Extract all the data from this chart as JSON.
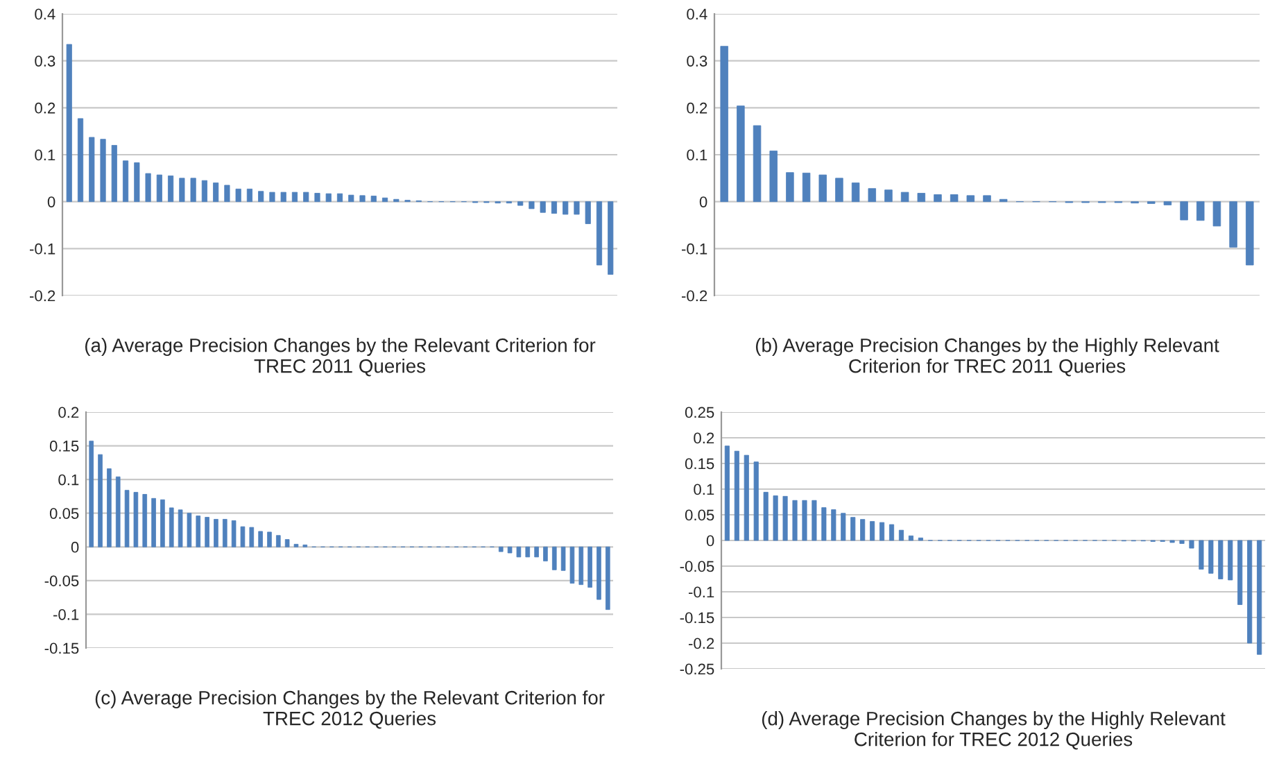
{
  "chart_data": [
    {
      "type": "bar",
      "xlabel": "(a) Average Precision Changes by the Relevant Criterion for\nTREC 2011 Queries",
      "categories": [
        null,
        null,
        null,
        null,
        null,
        null,
        null,
        null,
        null,
        null,
        null,
        null,
        null,
        null,
        null,
        null,
        null,
        null,
        null,
        null,
        null,
        null,
        null,
        null,
        null,
        null,
        null,
        null,
        null,
        null,
        null,
        null,
        null,
        null,
        null,
        null,
        null,
        null,
        null,
        null,
        null,
        null,
        null,
        null,
        null,
        null,
        null,
        null,
        null
      ],
      "values": [
        0.335,
        0.177,
        0.137,
        0.133,
        0.12,
        0.087,
        0.083,
        0.06,
        0.057,
        0.055,
        0.05,
        0.05,
        0.045,
        0.04,
        0.035,
        0.027,
        0.027,
        0.022,
        0.02,
        0.02,
        0.02,
        0.02,
        0.018,
        0.017,
        0.017,
        0.014,
        0.013,
        0.012,
        0.008,
        0.005,
        0.003,
        0.002,
        0,
        0,
        0,
        0,
        -0.002,
        -0.002,
        -0.003,
        -0.003,
        -0.008,
        -0.015,
        -0.023,
        -0.025,
        -0.027,
        -0.027,
        -0.047,
        -0.135,
        -0.155
      ],
      "color": "#4f81bd",
      "ylim": [
        -0.2,
        0.4
      ],
      "yticks": [
        -0.2,
        -0.1,
        0,
        0.1,
        0.2,
        0.3,
        0.4
      ],
      "grid": "y",
      "tick_labels": "y"
    },
    {
      "type": "bar",
      "xlabel": "(b) Average Precision Changes by the Highly Relevant\nCriterion for TREC 2011 Queries",
      "categories": [
        null,
        null,
        null,
        null,
        null,
        null,
        null,
        null,
        null,
        null,
        null,
        null,
        null,
        null,
        null,
        null,
        null,
        null,
        null,
        null,
        null,
        null,
        null,
        null,
        null,
        null,
        null,
        null,
        null,
        null,
        null,
        null,
        null
      ],
      "values": [
        0.331,
        0.204,
        0.162,
        0.108,
        0.062,
        0.061,
        0.057,
        0.05,
        0.04,
        0.028,
        0.025,
        0.02,
        0.018,
        0.015,
        0.015,
        0.013,
        0.013,
        0.005,
        0,
        0,
        0,
        -0.002,
        -0.002,
        -0.002,
        -0.002,
        -0.003,
        -0.004,
        -0.007,
        -0.039,
        -0.04,
        -0.052,
        -0.097,
        -0.135
      ],
      "color": "#4f81bd",
      "ylim": [
        -0.2,
        0.4
      ],
      "yticks": [
        -0.2,
        -0.1,
        0,
        0.1,
        0.2,
        0.3,
        0.4
      ],
      "grid": "y",
      "tick_labels": "y"
    },
    {
      "type": "bar",
      "xlabel": "(c) Average Precision Changes by the Relevant Criterion for\nTREC 2012 Queries",
      "categories": [
        null,
        null,
        null,
        null,
        null,
        null,
        null,
        null,
        null,
        null,
        null,
        null,
        null,
        null,
        null,
        null,
        null,
        null,
        null,
        null,
        null,
        null,
        null,
        null,
        null,
        null,
        null,
        null,
        null,
        null,
        null,
        null,
        null,
        null,
        null,
        null,
        null,
        null,
        null,
        null,
        null,
        null,
        null,
        null,
        null,
        null,
        null,
        null,
        null,
        null,
        null,
        null,
        null,
        null,
        null,
        null,
        null,
        null,
        null
      ],
      "values": [
        0.157,
        0.137,
        0.116,
        0.104,
        0.084,
        0.081,
        0.078,
        0.072,
        0.07,
        0.058,
        0.055,
        0.05,
        0.046,
        0.044,
        0.041,
        0.041,
        0.039,
        0.03,
        0.029,
        0.023,
        0.022,
        0.017,
        0.011,
        0.004,
        0.003,
        0,
        0,
        0,
        0,
        0,
        0,
        0,
        0,
        0,
        0,
        0,
        0,
        0,
        0,
        0,
        0,
        0,
        0,
        0,
        0,
        0,
        -0.007,
        -0.009,
        -0.015,
        -0.015,
        -0.015,
        -0.021,
        -0.034,
        -0.035,
        -0.054,
        -0.056,
        -0.06,
        -0.078,
        -0.093
      ],
      "color": "#4f81bd",
      "ylim": [
        -0.15,
        0.2
      ],
      "yticks": [
        -0.15,
        -0.1,
        -0.05,
        0,
        0.05,
        0.1,
        0.15,
        0.2
      ],
      "grid": "y",
      "tick_labels": "y"
    },
    {
      "type": "bar",
      "xlabel": "(d) Average Precision Changes by the Highly Relevant\nCriterion for TREC 2012 Queries",
      "categories": [
        null,
        null,
        null,
        null,
        null,
        null,
        null,
        null,
        null,
        null,
        null,
        null,
        null,
        null,
        null,
        null,
        null,
        null,
        null,
        null,
        null,
        null,
        null,
        null,
        null,
        null,
        null,
        null,
        null,
        null,
        null,
        null,
        null,
        null,
        null,
        null,
        null,
        null,
        null,
        null,
        null,
        null,
        null,
        null,
        null,
        null,
        null,
        null,
        null,
        null,
        null,
        null,
        null,
        null,
        null,
        null
      ],
      "values": [
        0.184,
        0.174,
        0.166,
        0.153,
        0.094,
        0.087,
        0.086,
        0.078,
        0.078,
        0.078,
        0.064,
        0.06,
        0.053,
        0.045,
        0.041,
        0.037,
        0.035,
        0.031,
        0.02,
        0.009,
        0.005,
        0,
        0,
        0,
        0,
        0,
        0,
        0,
        0,
        0,
        0,
        0,
        0,
        0,
        0,
        0,
        0,
        0,
        0,
        0,
        0,
        -0.001,
        -0.001,
        -0.001,
        -0.002,
        -0.002,
        -0.004,
        -0.006,
        -0.015,
        -0.056,
        -0.064,
        -0.075,
        -0.077,
        -0.125,
        -0.2,
        -0.222
      ],
      "color": "#4f81bd",
      "ylim": [
        -0.25,
        0.25
      ],
      "yticks": [
        -0.25,
        -0.2,
        -0.15,
        -0.1,
        -0.05,
        0,
        0.05,
        0.1,
        0.15,
        0.2,
        0.25
      ],
      "grid": "y",
      "tick_labels": "y"
    }
  ]
}
